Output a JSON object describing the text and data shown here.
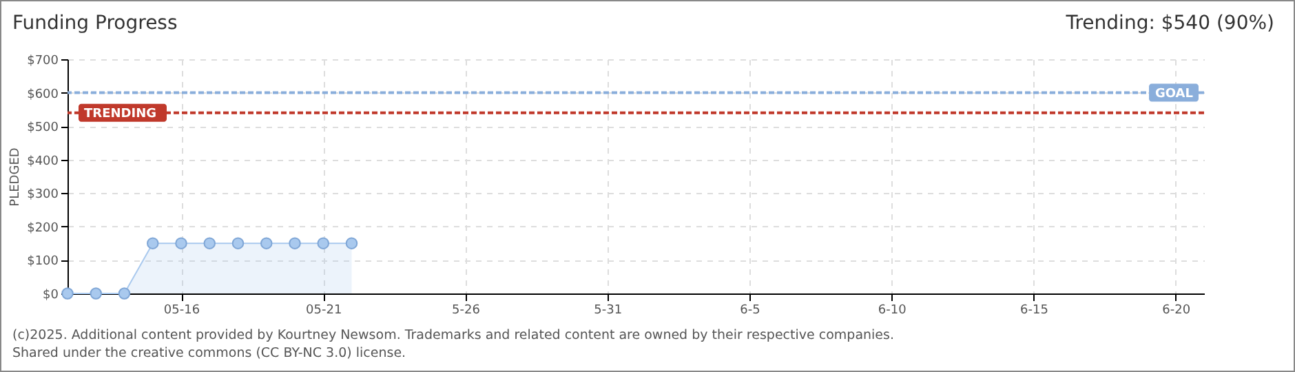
{
  "chart_data": {
    "type": "area",
    "title": "Funding Progress",
    "subtitle": "Trending: $540 (90%)",
    "ylabel": "PLEDGED",
    "x": [
      "2025-05-12",
      "2025-05-13",
      "2025-05-14",
      "2025-05-15",
      "2025-05-16",
      "2025-05-17",
      "2025-05-18",
      "2025-05-19",
      "2025-05-20",
      "2025-05-21",
      "2025-05-22"
    ],
    "series": [
      {
        "color": "#a9c9ee",
        "values": [
          0,
          0,
          0,
          150,
          150,
          150,
          150,
          150,
          150,
          150,
          150
        ]
      }
    ],
    "xlim": [
      "2025-05-12",
      "2025-06-21"
    ],
    "xticks": [
      {
        "value": "2025-05-16",
        "label": "05-16"
      },
      {
        "value": "2025-05-21",
        "label": "05-21"
      },
      {
        "value": "2025-05-26",
        "label": "5-26"
      },
      {
        "value": "2025-05-31",
        "label": "5-31"
      },
      {
        "value": "2025-06-05",
        "label": "6-5"
      },
      {
        "value": "2025-06-10",
        "label": "6-10"
      },
      {
        "value": "2025-06-15",
        "label": "6-15"
      },
      {
        "value": "2025-06-20",
        "label": "6-20"
      }
    ],
    "ylim": [
      0,
      700
    ],
    "yticks": [
      {
        "value": 0,
        "label": "$0"
      },
      {
        "value": 100,
        "label": "$100"
      },
      {
        "value": 200,
        "label": "$200"
      },
      {
        "value": 300,
        "label": "$300"
      },
      {
        "value": 400,
        "label": "$400"
      },
      {
        "value": 500,
        "label": "$500"
      },
      {
        "value": 600,
        "label": "$600"
      },
      {
        "value": 700,
        "label": "$700"
      }
    ],
    "ref_lines": [
      {
        "axis": "y",
        "value": 600,
        "label": "GOAL",
        "color": "#8aaedb",
        "line_style": "dashed"
      },
      {
        "axis": "y",
        "value": 540,
        "label": "TRENDING",
        "color": "#c0392b",
        "line_style": "dashed"
      }
    ],
    "grid": true,
    "marker": "circle",
    "annotations": [
      "(c)2025. Additional content provided by Kourtney Newsom. Trademarks and related content are owned by their respective companies.",
      "Shared under the creative commons (CC BY-NC 3.0) license."
    ]
  }
}
